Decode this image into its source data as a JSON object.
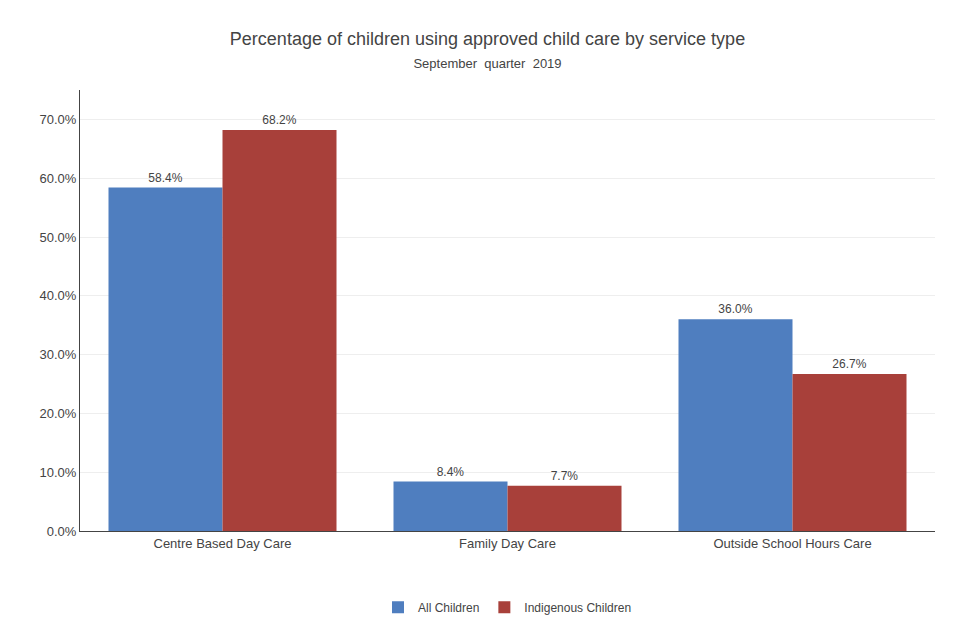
{
  "chart_data": {
    "type": "bar",
    "title": "Percentage of children using approved child care by service type",
    "subtitle": "September  quarter  2019",
    "categories": [
      "Centre Based Day Care",
      "Family Day Care",
      "Outside School Hours Care"
    ],
    "series": [
      {
        "name": "All Children",
        "color": "#4F7EBF",
        "values": [
          58.4,
          8.4,
          36.0
        ],
        "value_labels": [
          "58.4%",
          "8.4%",
          "36.0%"
        ]
      },
      {
        "name": "Indigenous Children",
        "color": "#A8403A",
        "values": [
          68.2,
          7.7,
          26.7
        ],
        "value_labels": [
          "68.2%",
          "7.7%",
          "26.7%"
        ]
      }
    ],
    "ylim": [
      0,
      75
    ],
    "yticks": [
      {
        "value": 0,
        "label": "0.0%"
      },
      {
        "value": 10,
        "label": "10.0%"
      },
      {
        "value": 20,
        "label": "20.0%"
      },
      {
        "value": 30,
        "label": "30.0%"
      },
      {
        "value": 40,
        "label": "40.0%"
      },
      {
        "value": 50,
        "label": "50.0%"
      },
      {
        "value": 60,
        "label": "60.0%"
      },
      {
        "value": 70,
        "label": "70.0%"
      }
    ],
    "grid": true,
    "legend": "bottom",
    "data_labels": true
  }
}
